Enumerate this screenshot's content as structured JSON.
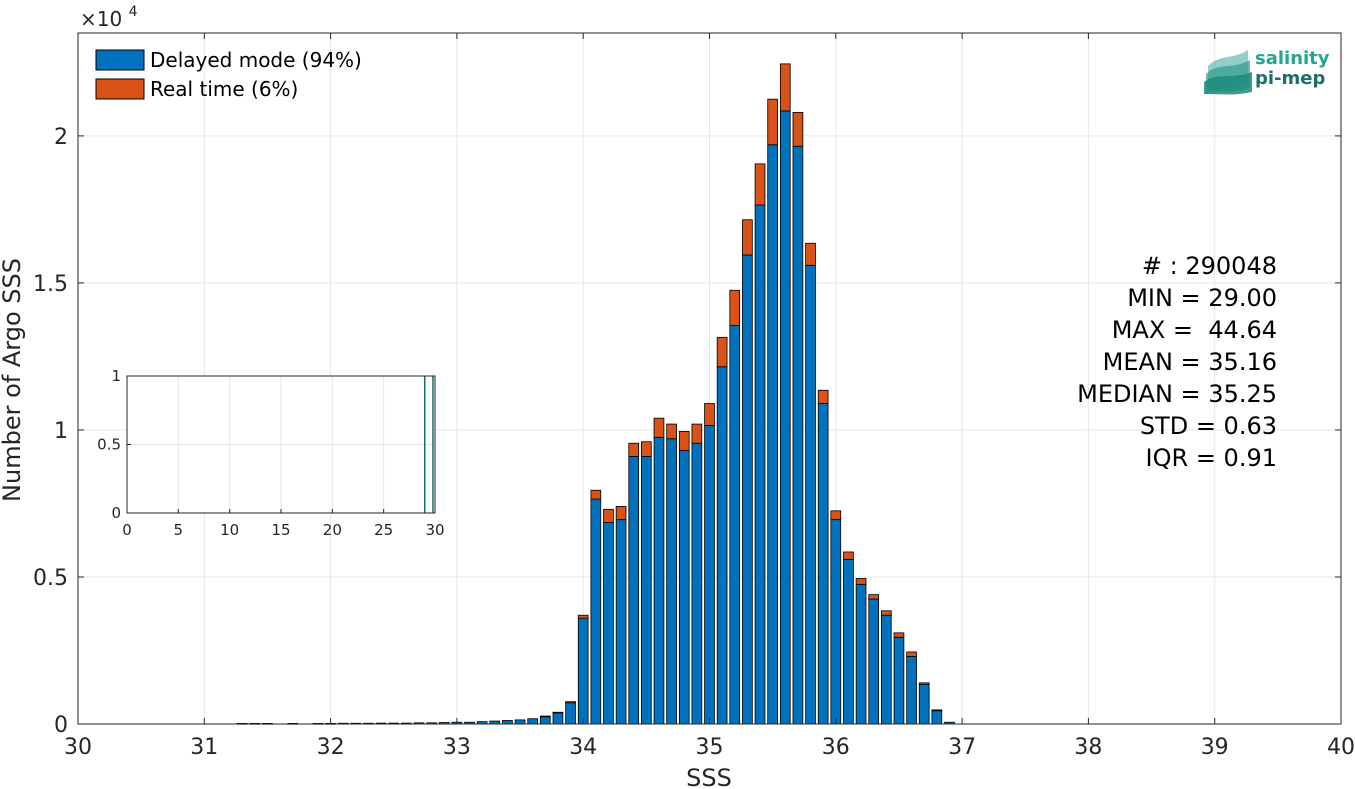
{
  "chart_data": [
    {
      "type": "bar",
      "stacked": true,
      "xlabel": "SSS",
      "ylabel": "Number of Argo SSS",
      "y_multiplier_label": "×10",
      "y_multiplier_exp": "4",
      "xlim": [
        30,
        40
      ],
      "ylim": [
        0,
        23500
      ],
      "x_tick_labels": [
        "30",
        "31",
        "32",
        "33",
        "34",
        "35",
        "36",
        "37",
        "38",
        "39",
        "40"
      ],
      "y_tick_labels": [
        "0",
        "0.5",
        "1",
        "1.5",
        "2"
      ],
      "grid": true,
      "legend_position": "top-left",
      "bin_width": 0.1,
      "x": [
        30.1,
        30.2,
        30.3,
        30.4,
        30.5,
        30.6,
        30.7,
        30.8,
        30.9,
        31.0,
        31.1,
        31.2,
        31.3,
        31.4,
        31.5,
        31.6,
        31.7,
        31.8,
        31.9,
        32.0,
        32.1,
        32.2,
        32.3,
        32.4,
        32.5,
        32.6,
        32.7,
        32.8,
        32.9,
        33.0,
        33.1,
        33.2,
        33.3,
        33.4,
        33.5,
        33.6,
        33.7,
        33.8,
        33.9,
        34.0,
        34.1,
        34.2,
        34.3,
        34.4,
        34.5,
        34.6,
        34.7,
        34.8,
        34.9,
        35.0,
        35.1,
        35.2,
        35.3,
        35.4,
        35.5,
        35.6,
        35.7,
        35.8,
        35.9,
        36.0,
        36.1,
        36.2,
        36.3,
        36.4,
        36.5,
        36.6,
        36.7,
        36.8,
        36.9,
        37.0
      ],
      "series": [
        {
          "name": "Delayed mode (94%)",
          "color": "#0072BD",
          "values": [
            0,
            0,
            0,
            0,
            0,
            0,
            0,
            0,
            0,
            0,
            0,
            0,
            20,
            20,
            20,
            0,
            20,
            0,
            20,
            20,
            25,
            25,
            25,
            30,
            30,
            30,
            40,
            40,
            50,
            60,
            60,
            80,
            100,
            120,
            140,
            180,
            250,
            380,
            720,
            3600,
            7650,
            6850,
            6950,
            9100,
            9100,
            9750,
            9700,
            9300,
            9550,
            10150,
            12150,
            13550,
            15950,
            17650,
            19700,
            20850,
            19650,
            15600,
            10900,
            6950,
            5600,
            4750,
            4250,
            3700,
            2950,
            2300,
            1350,
            450,
            60,
            0
          ],
          "x": null
        },
        {
          "name": "Real time (6%)",
          "color": "#D95319",
          "values": [
            0,
            0,
            0,
            0,
            0,
            0,
            0,
            0,
            0,
            0,
            0,
            0,
            0,
            0,
            0,
            0,
            0,
            0,
            0,
            0,
            0,
            0,
            0,
            0,
            0,
            0,
            0,
            0,
            0,
            0,
            0,
            0,
            0,
            0,
            0,
            0,
            20,
            20,
            40,
            100,
            300,
            450,
            450,
            450,
            500,
            650,
            500,
            650,
            650,
            750,
            1000,
            1200,
            1200,
            1400,
            1550,
            1600,
            1150,
            750,
            450,
            300,
            250,
            200,
            150,
            150,
            150,
            150,
            50,
            30,
            0,
            0
          ]
        }
      ],
      "stats": {
        "count": "# : 290048",
        "min": "MIN = 29.00",
        "max": "MAX =  44.64",
        "mean": "MEAN = 35.16",
        "median": "MEDIAN = 35.25",
        "std": "STD = 0.63",
        "iqr": "IQR = 0.91"
      },
      "logo_text_1": "salinity",
      "logo_text_2": "pi-mep"
    },
    {
      "type": "bar",
      "inset": true,
      "xlim": [
        0,
        30
      ],
      "ylim": [
        0,
        1
      ],
      "x_tick_labels": [
        "0",
        "5",
        "10",
        "15",
        "20",
        "25",
        "30"
      ],
      "y_tick_labels": [
        "0",
        "0.5",
        "1"
      ],
      "grid": true,
      "x": [
        29.0,
        29.8
      ],
      "values": [
        1,
        1
      ],
      "color": "#0072BD"
    }
  ]
}
